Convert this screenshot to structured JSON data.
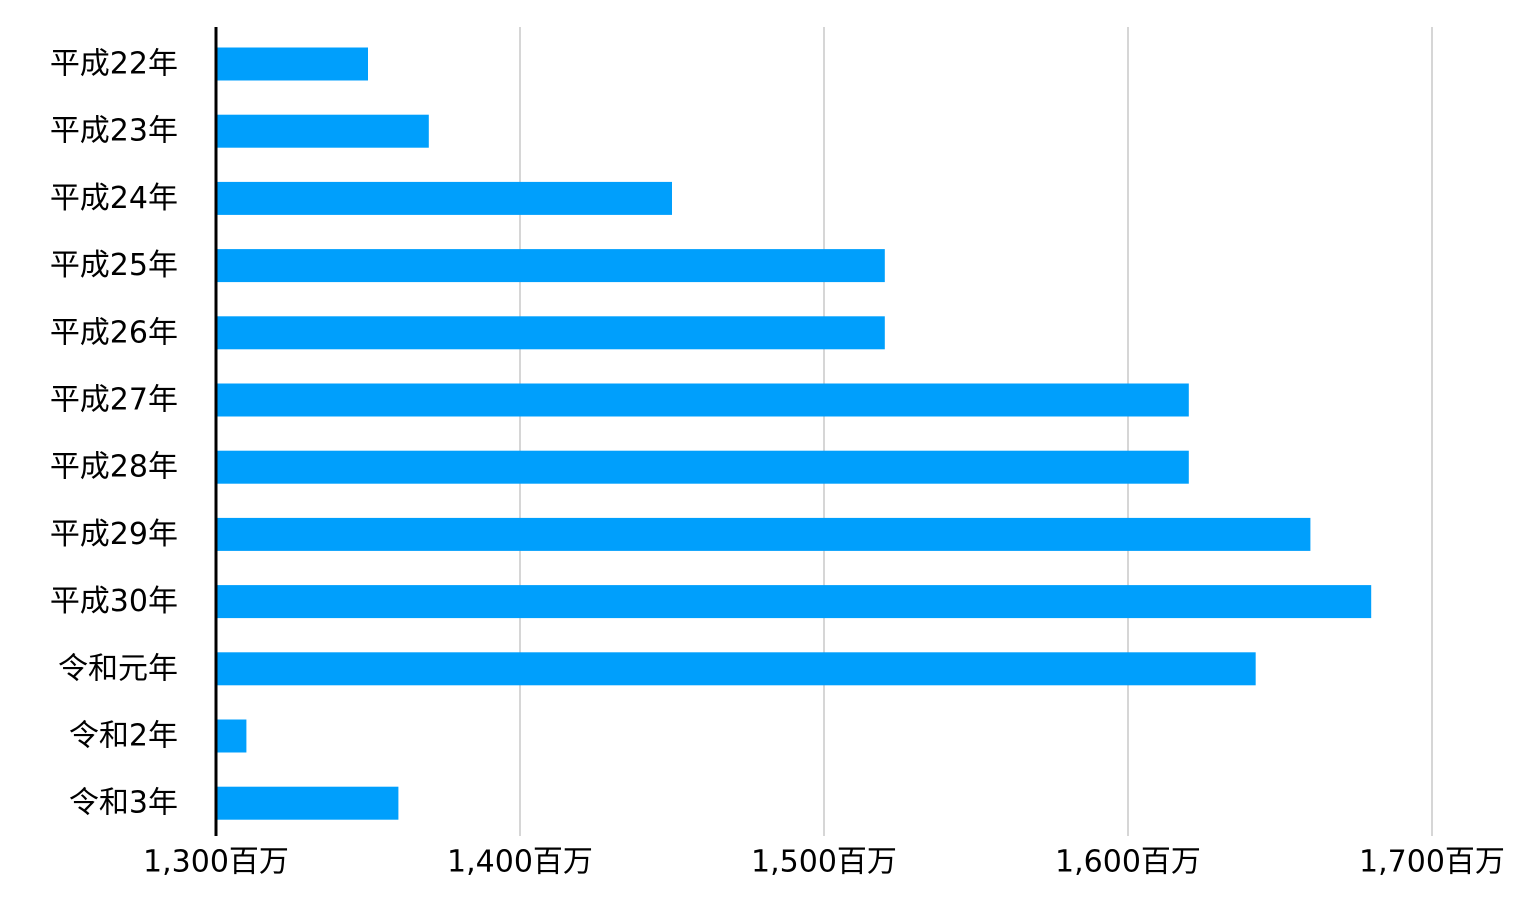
{
  "chart_data": {
    "type": "bar",
    "orientation": "horizontal",
    "title": "",
    "xlabel": "",
    "ylabel": "",
    "categories": [
      "平成22年",
      "平成23年",
      "平成24年",
      "平成25年",
      "平成26年",
      "平成27年",
      "平成28年",
      "平成29年",
      "平成30年",
      "令和元年",
      "令和2年",
      "令和3年"
    ],
    "values": [
      1350,
      1370,
      1450,
      1520,
      1520,
      1620,
      1620,
      1660,
      1680,
      1642,
      1310,
      1360
    ],
    "value_unit": "百万",
    "xlim": [
      1300,
      1700
    ],
    "x_ticks": [
      1300,
      1400,
      1500,
      1600,
      1700
    ],
    "x_tick_labels": [
      "1,300百万",
      "1,400百万",
      "1,500百万",
      "1,600百万",
      "1,700百万"
    ],
    "grid": "vertical",
    "legend": "none",
    "colors": {
      "bar": "#009FFC",
      "grid": "#c8c8c8",
      "axis": "#000000"
    }
  }
}
